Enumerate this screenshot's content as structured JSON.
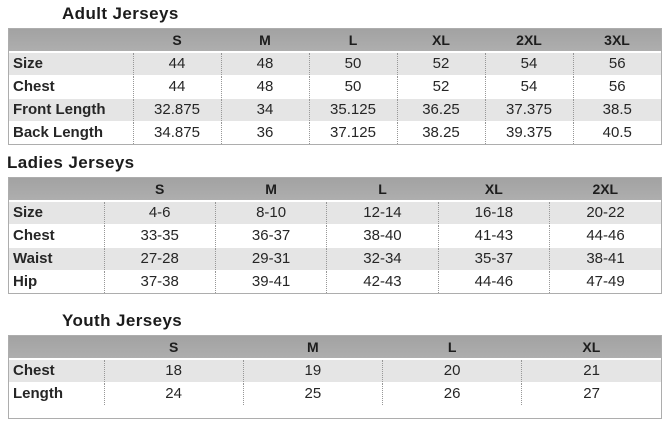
{
  "colors": {
    "page_bg": "#ffffff",
    "header_bg": "#a8a8a8",
    "alt_row_bg": "#e5e5e5",
    "row_bg": "#ffffff",
    "border_color": "#adadad",
    "dotted_color": "#979797",
    "text_color": "#262626",
    "title_color": "#1b1b1b"
  },
  "sections": [
    {
      "title": "Adult Jerseys",
      "columns": [
        "S",
        "M",
        "L",
        "XL",
        "2XL",
        "3XL"
      ],
      "rows": [
        {
          "label": "Size",
          "values": [
            "44",
            "48",
            "50",
            "52",
            "54",
            "56"
          ]
        },
        {
          "label": "Chest",
          "values": [
            "44",
            "48",
            "50",
            "52",
            "54",
            "56"
          ]
        },
        {
          "label": "Front Length",
          "values": [
            "32.875",
            "34",
            "35.125",
            "36.25",
            "37.375",
            "38.5"
          ]
        },
        {
          "label": "Back Length",
          "values": [
            "34.875",
            "36",
            "37.125",
            "38.25",
            "39.375",
            "40.5"
          ]
        }
      ]
    },
    {
      "title": "Ladies Jerseys",
      "columns": [
        "S",
        "M",
        "L",
        "XL",
        "2XL"
      ],
      "rows": [
        {
          "label": "Size",
          "values": [
            "4-6",
            "8-10",
            "12-14",
            "16-18",
            "20-22"
          ]
        },
        {
          "label": "Chest",
          "values": [
            "33-35",
            "36-37",
            "38-40",
            "41-43",
            "44-46"
          ]
        },
        {
          "label": "Waist",
          "values": [
            "27-28",
            "29-31",
            "32-34",
            "35-37",
            "38-41"
          ]
        },
        {
          "label": "Hip",
          "values": [
            "37-38",
            "39-41",
            "42-43",
            "44-46",
            "47-49"
          ]
        }
      ]
    },
    {
      "title": "Youth Jerseys",
      "columns": [
        "S",
        "M",
        "L",
        "XL"
      ],
      "rows": [
        {
          "label": "Chest",
          "values": [
            "18",
            "19",
            "20",
            "21"
          ]
        },
        {
          "label": "Length",
          "values": [
            "24",
            "25",
            "26",
            "27"
          ]
        }
      ]
    }
  ]
}
